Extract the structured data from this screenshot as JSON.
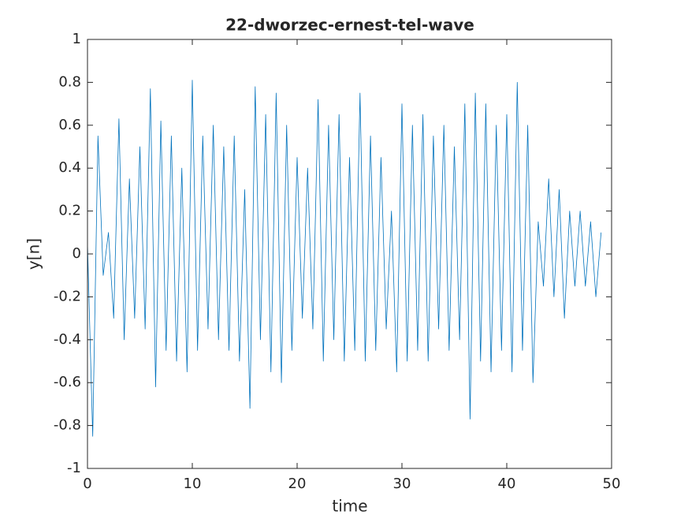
{
  "chart_data": {
    "type": "line",
    "title": "22-dworzec-ernest-tel-wave",
    "xlabel": "time",
    "ylabel": "y[n]",
    "x": [
      0,
      0.5,
      1,
      1.5,
      2,
      2.5,
      3,
      3.5,
      4,
      4.5,
      5,
      5.5,
      6,
      6.5,
      7,
      7.5,
      8,
      8.5,
      9,
      9.5,
      10,
      10.5,
      11,
      11.5,
      12,
      12.5,
      13,
      13.5,
      14,
      14.5,
      15,
      15.5,
      16,
      16.5,
      17,
      17.5,
      18,
      18.5,
      19,
      19.5,
      20,
      20.5,
      21,
      21.5,
      22,
      22.5,
      23,
      23.5,
      24,
      24.5,
      25,
      25.5,
      26,
      26.5,
      27,
      27.5,
      28,
      28.5,
      29,
      29.5,
      30,
      30.5,
      31,
      31.5,
      32,
      32.5,
      33,
      33.5,
      34,
      34.5,
      35,
      35.5,
      36,
      36.5,
      37,
      37.5,
      38,
      38.5,
      39,
      39.5,
      40,
      40.5,
      41,
      41.5,
      42,
      42.5,
      43,
      43.5,
      44,
      44.5,
      45,
      45.5,
      46,
      46.5,
      47,
      47.5,
      48,
      48.5,
      49
    ],
    "series": [
      {
        "color": "#0072bd",
        "values": [
          0.05,
          -0.85,
          0.55,
          -0.1,
          0.1,
          -0.3,
          0.63,
          -0.4,
          0.35,
          -0.3,
          0.5,
          -0.35,
          0.77,
          -0.62,
          0.62,
          -0.45,
          0.55,
          -0.5,
          0.4,
          -0.55,
          0.81,
          -0.45,
          0.55,
          -0.35,
          0.6,
          -0.4,
          0.5,
          -0.45,
          0.55,
          -0.5,
          0.3,
          -0.72,
          0.78,
          -0.4,
          0.65,
          -0.55,
          0.75,
          -0.6,
          0.6,
          -0.45,
          0.45,
          -0.3,
          0.4,
          -0.35,
          0.72,
          -0.5,
          0.6,
          -0.4,
          0.65,
          -0.5,
          0.45,
          -0.45,
          0.75,
          -0.5,
          0.55,
          -0.45,
          0.45,
          -0.35,
          0.2,
          -0.55,
          0.7,
          -0.5,
          0.6,
          -0.45,
          0.65,
          -0.5,
          0.55,
          -0.35,
          0.6,
          -0.45,
          0.5,
          -0.4,
          0.7,
          -0.77,
          0.75,
          -0.5,
          0.7,
          -0.55,
          0.6,
          -0.45,
          0.65,
          -0.55,
          0.8,
          -0.45,
          0.6,
          -0.6,
          0.15,
          -0.15,
          0.35,
          -0.2,
          0.3,
          -0.3,
          0.2,
          -0.15,
          0.2,
          -0.15,
          0.15,
          -0.2,
          0.1
        ]
      }
    ],
    "xlim": [
      0,
      50
    ],
    "xticks": [
      0,
      10,
      20,
      30,
      40,
      50
    ],
    "ylim": [
      -1,
      1
    ],
    "yticks": [
      -1,
      -0.8,
      -0.6,
      -0.4,
      -0.2,
      0,
      0.2,
      0.4,
      0.6,
      0.8,
      1
    ]
  }
}
